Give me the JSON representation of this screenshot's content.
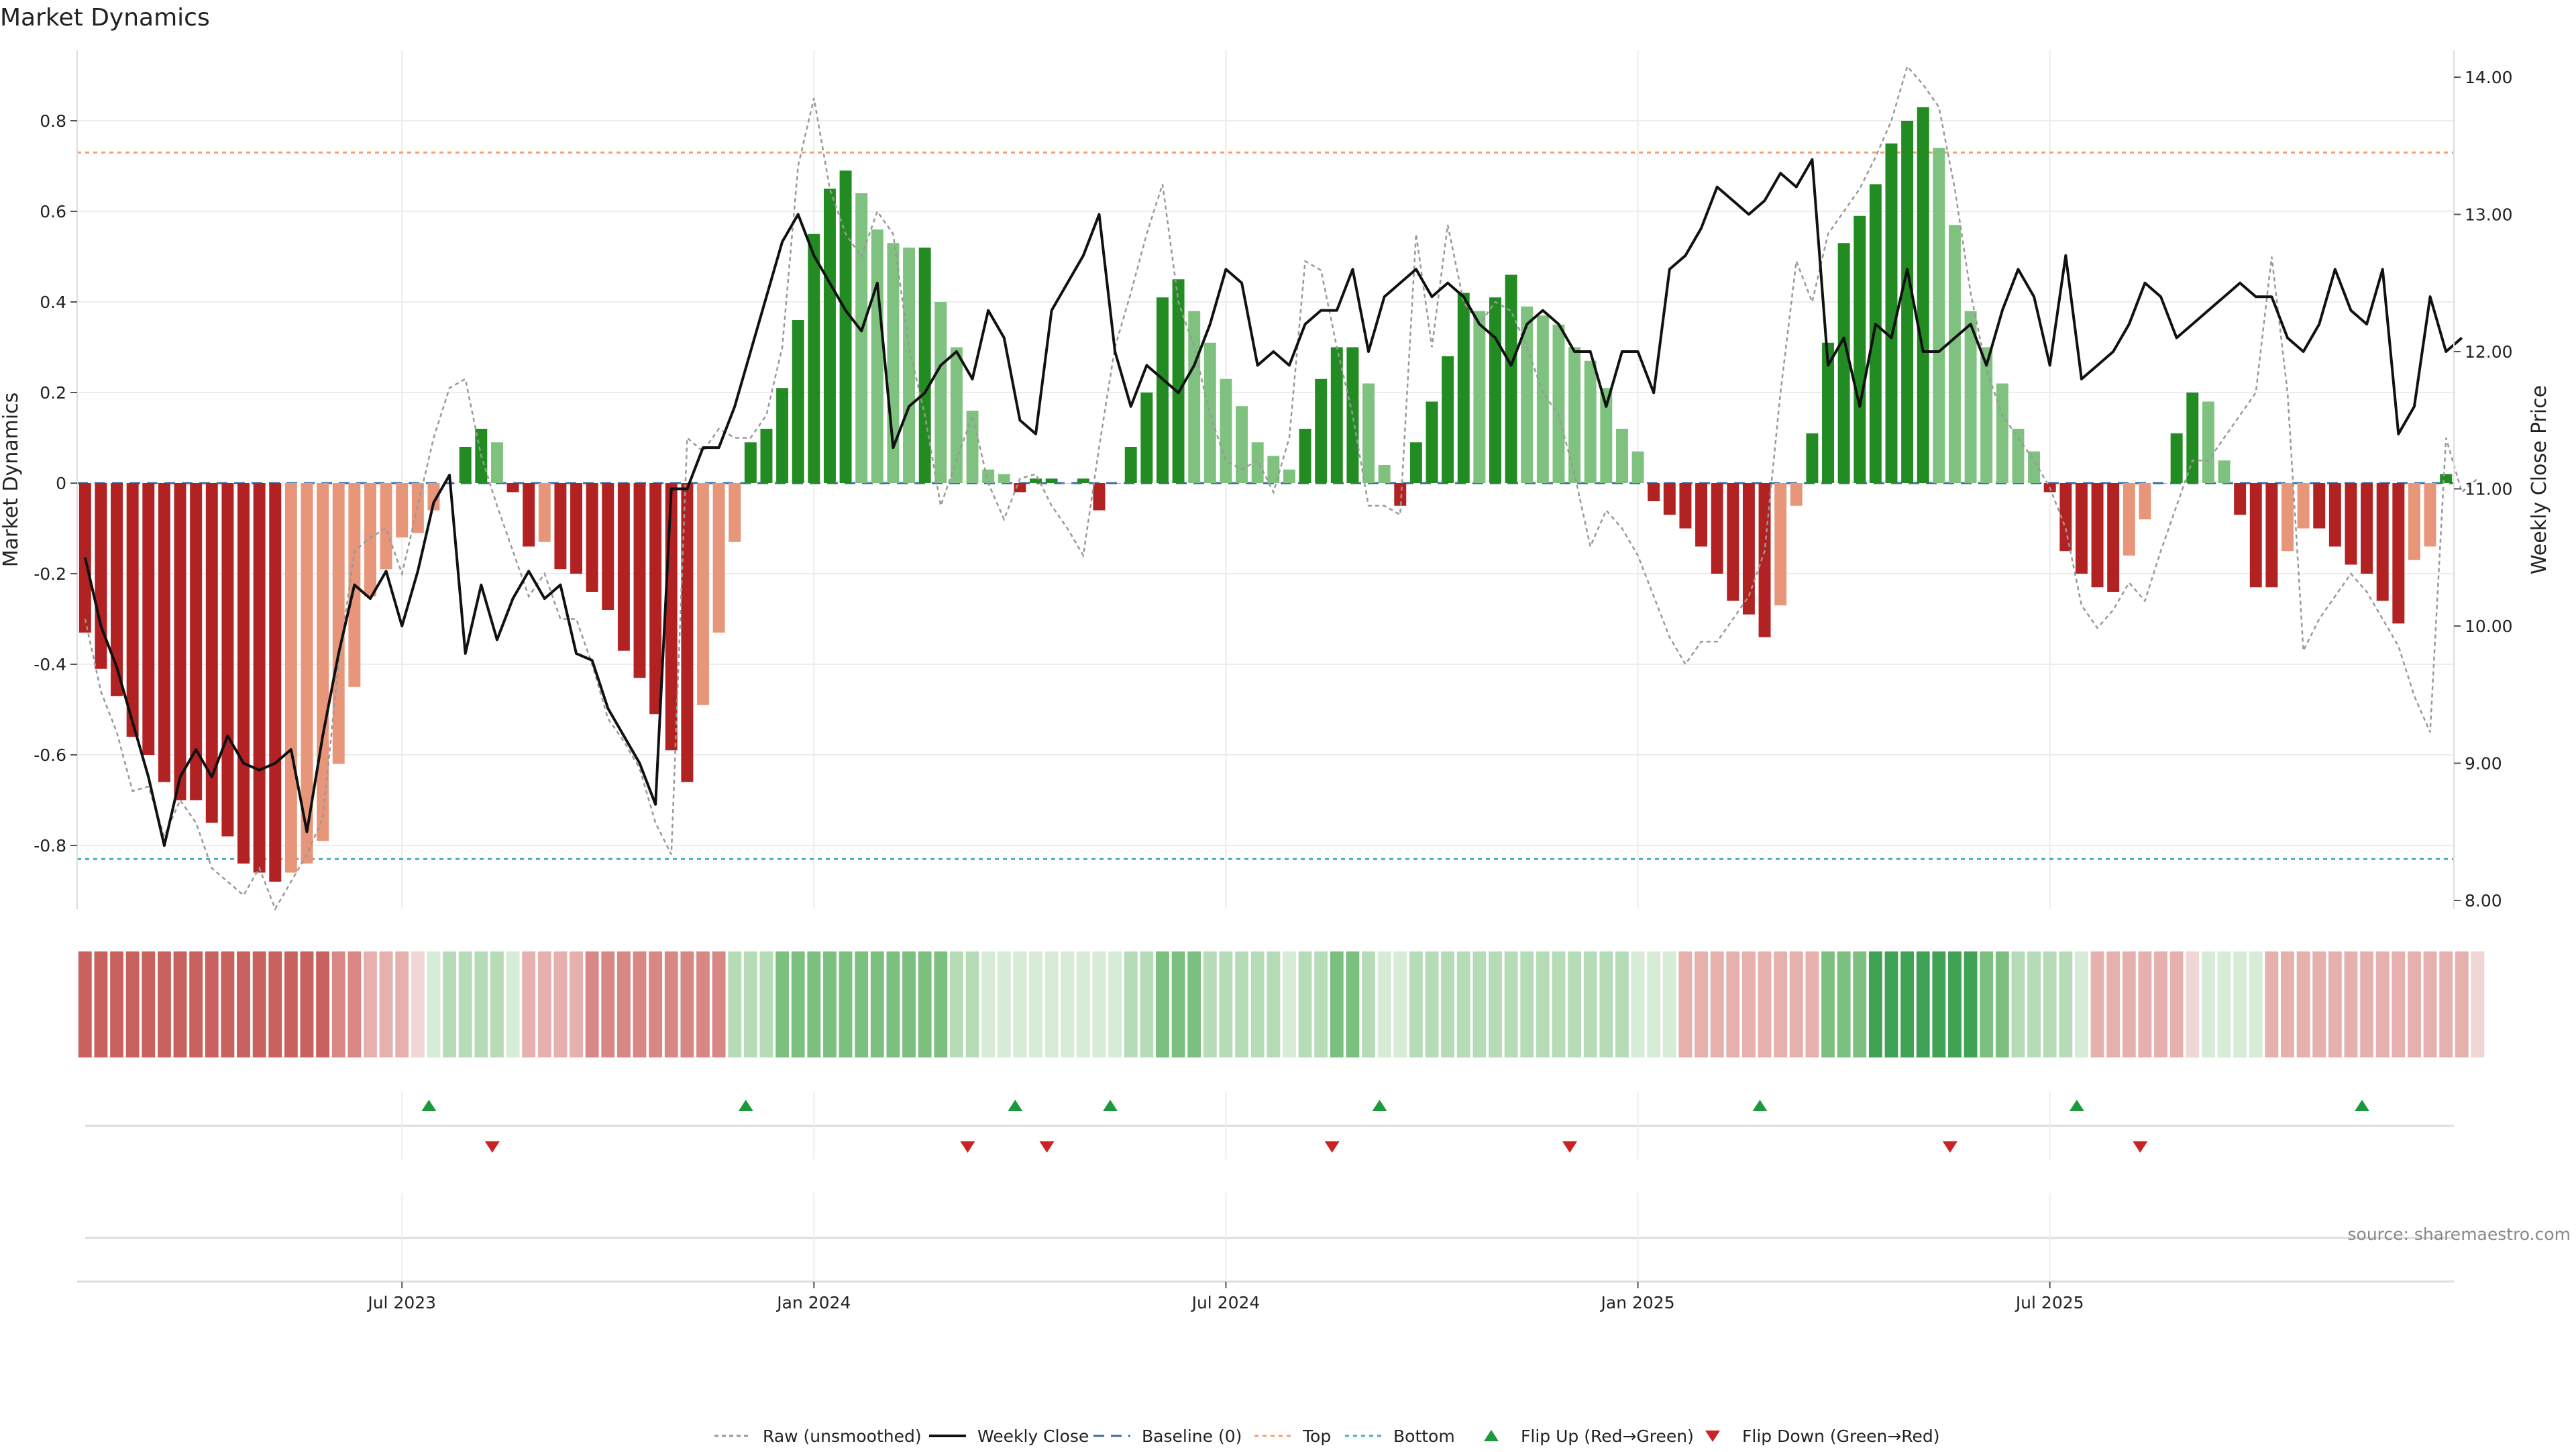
{
  "chart_data": {
    "type": "bar",
    "title": "Market Dynamics",
    "source": "source: sharemaestro.com",
    "ylabel_left": "Market Dynamics",
    "ylabel_right": "Weekly Close Price",
    "ylim_left": [
      -0.95,
      0.95
    ],
    "ylim_right": [
      8.0,
      14.0
    ],
    "yticks_left": [
      "0.8",
      "0.6",
      "0.4",
      "0.2",
      "0",
      "-0.2",
      "-0.4",
      "-0.6",
      "-0.8"
    ],
    "yticks_right": [
      "14.00",
      "13.00",
      "12.00",
      "11.00",
      "10.00",
      "9.00",
      "8.00"
    ],
    "xticks": [
      "Jul 2023",
      "Jan 2024",
      "Jul 2024",
      "Jan 2025",
      "Jul 2025"
    ],
    "xtick_week_index": [
      20.5,
      46.5,
      72.5,
      98.5,
      124.5
    ],
    "top_level": 0.73,
    "bottom_level": -0.83,
    "baseline": 0,
    "grid": true,
    "legend_position": "bottom-center",
    "legend": [
      {
        "label": "Raw (unsmoothed)",
        "style": "raw"
      },
      {
        "label": "Weekly Close",
        "style": "close"
      },
      {
        "label": "Baseline (0)",
        "style": "baseline"
      },
      {
        "label": "Top",
        "style": "top"
      },
      {
        "label": "Bottom",
        "style": "bottom"
      },
      {
        "label": "Flip Up (Red→Green)",
        "style": "flipup"
      },
      {
        "label": "Flip Down (Green→Red)",
        "style": "flipdown"
      }
    ],
    "colors": {
      "strong_green": "#228b22",
      "light_green": "#7fc27f",
      "strong_red": "#b22222",
      "light_red": "#e8967a",
      "close_line": "#111111",
      "raw_line": "#999999",
      "baseline": "#3b6ea5",
      "top_line": "#f0a070",
      "bottom_line": "#40b0c0",
      "flip_up": "#1a9a3a",
      "flip_down": "#cc2222"
    },
    "series": [
      {
        "name": "Market Dynamics",
        "values": [
          -0.33,
          -0.41,
          -0.47,
          -0.56,
          -0.6,
          -0.66,
          -0.7,
          -0.7,
          -0.75,
          -0.78,
          -0.84,
          -0.86,
          -0.88,
          -0.86,
          -0.84,
          -0.79,
          -0.62,
          -0.45,
          -0.25,
          -0.19,
          -0.12,
          -0.11,
          -0.06,
          0.0,
          0.08,
          0.12,
          0.09,
          -0.02,
          -0.14,
          -0.13,
          -0.19,
          -0.2,
          -0.24,
          -0.28,
          -0.37,
          -0.43,
          -0.51,
          -0.59,
          -0.66,
          -0.49,
          -0.33,
          -0.13,
          0.09,
          0.12,
          0.21,
          0.36,
          0.55,
          0.65,
          0.69,
          0.64,
          0.56,
          0.53,
          0.52,
          0.52,
          0.4,
          0.3,
          0.16,
          0.03,
          0.02,
          -0.02,
          0.01,
          0.01,
          0.0,
          0.01,
          -0.06,
          0.0,
          0.08,
          0.2,
          0.41,
          0.45,
          0.38,
          0.31,
          0.23,
          0.17,
          0.09,
          0.06,
          0.03,
          0.12,
          0.23,
          0.3,
          0.3,
          0.22,
          0.04,
          -0.05,
          0.09,
          0.18,
          0.28,
          0.42,
          0.38,
          0.41,
          0.46,
          0.39,
          0.37,
          0.35,
          0.3,
          0.27,
          0.21,
          0.12,
          0.07,
          -0.04,
          -0.07,
          -0.1,
          -0.14,
          -0.2,
          -0.26,
          -0.29,
          -0.34,
          -0.27,
          -0.05,
          0.11,
          0.31,
          0.53,
          0.59,
          0.66,
          0.75,
          0.8,
          0.83,
          0.74,
          0.57,
          0.38,
          0.3,
          0.22,
          0.12,
          0.07,
          -0.02,
          -0.15,
          -0.2,
          -0.23,
          -0.24,
          -0.16,
          -0.08,
          0.0,
          0.11,
          0.2,
          0.18,
          0.05,
          -0.07,
          -0.23,
          -0.23,
          -0.15,
          -0.1,
          -0.1,
          -0.14,
          -0.18,
          -0.2,
          -0.26,
          -0.31,
          -0.17,
          -0.14,
          0.02
        ]
      },
      {
        "name": "Raw (unsmoothed)",
        "values": [
          -0.3,
          -0.46,
          -0.55,
          -0.68,
          -0.67,
          -0.78,
          -0.7,
          -0.75,
          -0.85,
          -0.88,
          -0.91,
          -0.85,
          -0.94,
          -0.88,
          -0.82,
          -0.74,
          -0.4,
          -0.15,
          -0.12,
          -0.1,
          -0.2,
          -0.05,
          0.1,
          0.21,
          0.23,
          0.06,
          -0.05,
          -0.15,
          -0.25,
          -0.2,
          -0.3,
          -0.3,
          -0.4,
          -0.52,
          -0.57,
          -0.63,
          -0.75,
          -0.82,
          0.1,
          0.07,
          0.12,
          0.1,
          0.1,
          0.15,
          0.3,
          0.7,
          0.85,
          0.65,
          0.55,
          0.5,
          0.6,
          0.55,
          0.3,
          0.15,
          -0.05,
          0.05,
          0.15,
          0.0,
          -0.08,
          0.01,
          0.02,
          -0.05,
          -0.1,
          -0.16,
          0.08,
          0.3,
          0.42,
          0.55,
          0.66,
          0.4,
          0.3,
          0.15,
          0.05,
          0.03,
          0.05,
          -0.02,
          0.1,
          0.49,
          0.47,
          0.3,
          0.15,
          -0.05,
          -0.05,
          -0.07,
          0.55,
          0.3,
          0.57,
          0.4,
          0.35,
          0.4,
          0.38,
          0.3,
          0.2,
          0.15,
          0.02,
          -0.14,
          -0.06,
          -0.1,
          -0.16,
          -0.25,
          -0.34,
          -0.4,
          -0.35,
          -0.35,
          -0.3,
          -0.25,
          -0.15,
          0.2,
          0.49,
          0.4,
          0.55,
          0.6,
          0.65,
          0.72,
          0.8,
          0.92,
          0.88,
          0.83,
          0.65,
          0.42,
          0.25,
          0.15,
          0.1,
          0.05,
          -0.01,
          -0.1,
          -0.27,
          -0.32,
          -0.28,
          -0.22,
          -0.26,
          -0.15,
          -0.05,
          0.05,
          0.05,
          0.1,
          0.15,
          0.2,
          0.5,
          0.2,
          -0.37,
          -0.3,
          -0.25,
          -0.2,
          -0.24,
          -0.3,
          -0.36,
          -0.47,
          -0.55,
          0.1,
          -0.02,
          0.01
        ]
      },
      {
        "name": "Weekly Close",
        "values": [
          10.5,
          10.0,
          9.7,
          9.3,
          8.9,
          8.4,
          8.9,
          9.1,
          8.9,
          9.2,
          9.0,
          8.95,
          9.0,
          9.1,
          8.5,
          9.2,
          9.8,
          10.3,
          10.2,
          10.4,
          10.0,
          10.4,
          10.9,
          11.1,
          9.8,
          10.3,
          9.9,
          10.2,
          10.4,
          10.2,
          10.3,
          9.8,
          9.75,
          9.4,
          9.2,
          9.0,
          8.7,
          11.0,
          11.0,
          11.3,
          11.3,
          11.6,
          12.0,
          12.4,
          12.8,
          13.0,
          12.7,
          12.5,
          12.3,
          12.15,
          12.5,
          11.3,
          11.6,
          11.7,
          11.9,
          12.0,
          11.8,
          12.3,
          12.1,
          11.5,
          11.4,
          12.3,
          12.5,
          12.7,
          13.0,
          12.0,
          11.6,
          11.9,
          11.8,
          11.7,
          11.9,
          12.2,
          12.6,
          12.5,
          11.9,
          12.0,
          11.9,
          12.2,
          12.3,
          12.3,
          12.6,
          12.0,
          12.4,
          12.5,
          12.6,
          12.4,
          12.5,
          12.4,
          12.2,
          12.1,
          11.9,
          12.2,
          12.3,
          12.2,
          12.0,
          12.0,
          11.6,
          12.0,
          12.0,
          11.7,
          12.6,
          12.7,
          12.9,
          13.2,
          13.1,
          13.0,
          13.1,
          13.3,
          13.2,
          13.4,
          11.9,
          12.1,
          11.6,
          12.2,
          12.1,
          12.6,
          12.0,
          12.0,
          12.1,
          12.2,
          11.9,
          12.3,
          12.6,
          12.4,
          11.9,
          12.7,
          11.8,
          11.9,
          12.0,
          12.2,
          12.5,
          12.4,
          12.1,
          12.2,
          12.3,
          12.4,
          12.5,
          12.4,
          12.4,
          12.1,
          12.0,
          12.2,
          12.6,
          12.3,
          12.2,
          12.6,
          11.4,
          11.6,
          12.4,
          12.0,
          12.1
        ]
      }
    ],
    "heat_strip": [
      -3,
      -3,
      -3,
      -3,
      -3,
      -3,
      -3,
      -3,
      -3,
      -3,
      -3,
      -3,
      -3,
      -3,
      -3,
      -3,
      -2,
      -2,
      -1,
      -1,
      -1,
      0,
      0,
      1,
      1,
      1,
      1,
      0,
      -1,
      -1,
      -1,
      -1,
      -2,
      -2,
      -2,
      -2,
      -2,
      -2,
      -2,
      -2,
      -2,
      1,
      1,
      1,
      2,
      2,
      2,
      2,
      2,
      2,
      2,
      2,
      2,
      2,
      2,
      1,
      1,
      0,
      0,
      0,
      0,
      0,
      0,
      0,
      0,
      0,
      1,
      1,
      2,
      2,
      2,
      1,
      1,
      1,
      1,
      1,
      0,
      1,
      1,
      2,
      2,
      1,
      0,
      0,
      1,
      1,
      1,
      1,
      1,
      1,
      1,
      1,
      1,
      1,
      1,
      1,
      1,
      1,
      0,
      0,
      0,
      -1,
      -1,
      -1,
      -1,
      -1,
      -1,
      -1,
      -1,
      -1,
      2,
      2,
      2,
      3,
      3,
      3,
      3,
      3,
      3,
      3,
      2,
      2,
      1,
      1,
      1,
      1,
      0,
      -1,
      -1,
      -1,
      -1,
      -1,
      -1,
      0,
      0,
      0,
      0,
      0,
      -1,
      -1,
      -1,
      -1,
      -1,
      -1,
      -1,
      -1,
      -1,
      -1,
      -1,
      -1,
      -1,
      0
    ],
    "flip_up_weeks": [
      22.2,
      42.2,
      59.2,
      65.2,
      82.2,
      106.2,
      126.2,
      144.2
    ],
    "flip_down_weeks": [
      26.2,
      56.2,
      61.2,
      79.2,
      94.2,
      118.2,
      130.2
    ]
  }
}
